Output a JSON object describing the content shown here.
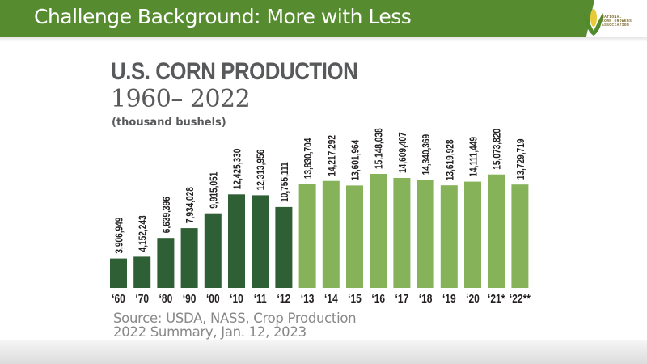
{
  "slide": {
    "title": "Challenge Background: More with Less",
    "logo": {
      "lines": [
        "NATIONAL",
        "CORN GROWERS",
        "ASSOCIATION"
      ]
    }
  },
  "colors": {
    "header_green": "#578b30",
    "bar_dark": "#2f5f35",
    "bar_light": "#86b25a",
    "text_gray": "#58595b"
  },
  "chart_data": {
    "type": "bar",
    "title": "U.S. CORN PRODUCTION",
    "subtitle": "1960– 2022",
    "unit": "(thousand bushels)",
    "xlabel": "",
    "ylabel": "",
    "ylim": [
      0,
      15148038
    ],
    "grid": false,
    "categories": [
      "‘60",
      "‘70",
      "‘80",
      "‘90",
      "‘00",
      "‘10",
      "‘11",
      "‘12",
      "‘13",
      "‘14",
      "‘15",
      "‘16",
      "‘17",
      "‘18",
      "‘19",
      "‘20",
      "‘21*",
      "‘22**"
    ],
    "values": [
      3906949,
      4152243,
      6639396,
      7934028,
      9915051,
      12425330,
      12313956,
      10755111,
      13830704,
      14217292,
      13601964,
      15148038,
      14609407,
      14340369,
      13619928,
      14111449,
      15073820,
      13729719
    ],
    "value_labels": [
      "3,906,949",
      "4,152,243",
      "6,639,396",
      "7,934,028",
      "9,915,051",
      "12,425,330",
      "12,313,956",
      "10,755,111",
      "13,830,704",
      "14,217,292",
      "13,601,964",
      "15,148,038",
      "14,609,407",
      "14,340,369",
      "13,619,928",
      "14,111,449",
      "15,073,820",
      "13,729,719"
    ],
    "bar_groups": [
      "dark",
      "dark",
      "dark",
      "dark",
      "dark",
      "dark",
      "dark",
      "dark",
      "light",
      "light",
      "light",
      "light",
      "light",
      "light",
      "light",
      "light",
      "light",
      "light"
    ],
    "source": [
      "Source: USDA, NASS, Crop Production",
      "2022 Summary, Jan. 12, 2023"
    ]
  }
}
